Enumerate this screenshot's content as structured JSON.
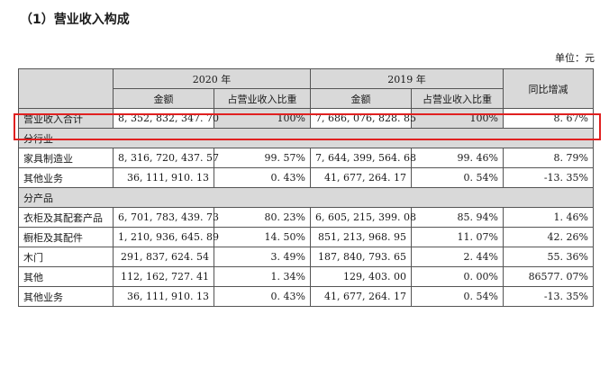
{
  "heading": "（1）营业收入构成",
  "unit": "单位：元",
  "header": {
    "year_2020": "2020 年",
    "year_2019": "2019 年",
    "amount": "金额",
    "ratio": "占营业收入比重",
    "yoy": "同比增减"
  },
  "total": {
    "label": "营业收入合计",
    "amount_2020": "8, 352, 832, 347. 70",
    "ratio_2020": "100%",
    "amount_2019": "7, 686, 076, 828. 85",
    "ratio_2019": "100%",
    "yoy": "8. 67%"
  },
  "groups": [
    {
      "title": "分行业",
      "rows": [
        {
          "label": "家具制造业",
          "amount_2020": "8, 316, 720, 437. 57",
          "ratio_2020": "99. 57%",
          "amount_2019": "7, 644, 399, 564. 68",
          "ratio_2019": "99. 46%",
          "yoy": "8. 79%"
        },
        {
          "label": "其他业务",
          "amount_2020": "36, 111, 910. 13",
          "ratio_2020": "0. 43%",
          "amount_2019": "41, 677, 264. 17",
          "ratio_2019": "0. 54%",
          "yoy": "-13. 35%"
        }
      ]
    },
    {
      "title": "分产品",
      "rows": [
        {
          "label": "衣柜及其配套产品",
          "amount_2020": "6, 701, 783, 439. 73",
          "ratio_2020": "80. 23%",
          "amount_2019": "6, 605, 215, 399. 08",
          "ratio_2019": "85. 94%",
          "yoy": "1. 46%"
        },
        {
          "label": "橱柜及其配件",
          "amount_2020": "1, 210, 936, 645. 89",
          "ratio_2020": "14. 50%",
          "amount_2019": "851, 213, 968. 95",
          "ratio_2019": "11. 07%",
          "yoy": "42. 26%"
        },
        {
          "label": "木门",
          "amount_2020": "291, 837, 624. 54",
          "ratio_2020": "3. 49%",
          "amount_2019": "187, 840, 793. 65",
          "ratio_2019": "2. 44%",
          "yoy": "55. 36%"
        },
        {
          "label": "其他",
          "amount_2020": "112, 162, 727. 41",
          "ratio_2020": "1. 34%",
          "amount_2019": "129, 403. 00",
          "ratio_2019": "0. 00%",
          "yoy": "86577. 07%"
        },
        {
          "label": "其他业务",
          "amount_2020": "36, 111, 910. 13",
          "ratio_2020": "0. 43%",
          "amount_2019": "41, 677, 264. 17",
          "ratio_2019": "0. 54%",
          "yoy": "-13. 35%"
        }
      ]
    }
  ]
}
